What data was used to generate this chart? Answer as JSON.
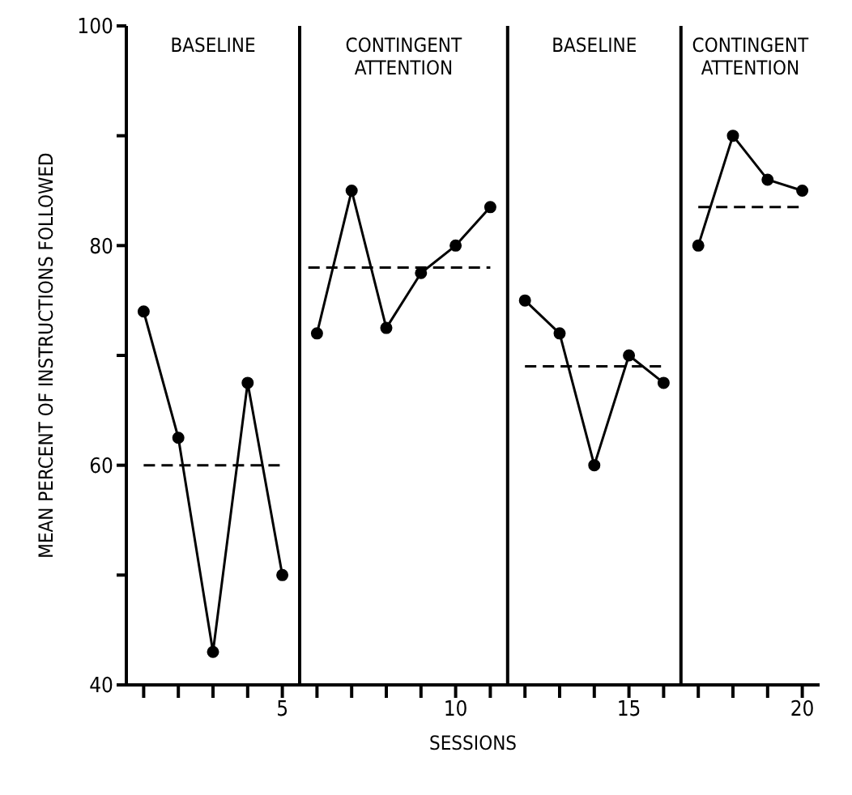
{
  "chart_data": {
    "type": "line",
    "xlabel": "SESSIONS",
    "ylabel": "MEAN PERCENT OF INSTRUCTIONS FOLLOWED",
    "xlim": [
      0.5,
      20.5
    ],
    "xticks": [
      {
        "value": 1,
        "label": null
      },
      {
        "value": 2,
        "label": null
      },
      {
        "value": 3,
        "label": null
      },
      {
        "value": 4,
        "label": null
      },
      5,
      {
        "value": 6,
        "label": null
      },
      {
        "value": 7,
        "label": null
      },
      {
        "value": 8,
        "label": null
      },
      {
        "value": 9,
        "label": null
      },
      10,
      {
        "value": 11,
        "label": null
      },
      {
        "value": 12,
        "label": null
      },
      {
        "value": 13,
        "label": null
      },
      {
        "value": 14,
        "label": null
      },
      15,
      {
        "value": 16,
        "label": null
      },
      {
        "value": 17,
        "label": null
      },
      {
        "value": 18,
        "label": null
      },
      {
        "value": 19,
        "label": null
      },
      20
    ],
    "ylim": [
      40,
      100
    ],
    "yticks": [
      40,
      {
        "value": 50,
        "label": null
      },
      60,
      {
        "value": 70,
        "label": null
      },
      80,
      {
        "value": 90,
        "label": null
      },
      100
    ],
    "grid": false,
    "series": [
      {
        "color": "#000000",
        "marker": "circle",
        "line_style": "solid",
        "x": [
          1,
          2,
          3,
          4,
          5
        ],
        "values": [
          74,
          62.5,
          43,
          67.5,
          50
        ]
      },
      {
        "color": "#000000",
        "marker": "circle",
        "line_style": "solid",
        "x": [
          6,
          7,
          8,
          9,
          10,
          11
        ],
        "values": [
          72,
          85,
          72.5,
          77.5,
          80,
          83.5
        ]
      },
      {
        "color": "#000000",
        "marker": "circle",
        "line_style": "solid",
        "x": [
          12,
          13,
          14,
          15,
          16
        ],
        "values": [
          75,
          72,
          60,
          70,
          67.5
        ]
      },
      {
        "color": "#000000",
        "marker": "circle",
        "line_style": "solid",
        "x": [
          17,
          18,
          19,
          20
        ],
        "values": [
          80,
          90,
          86,
          85
        ]
      },
      {
        "color": "#000000",
        "marker": "none",
        "line_style": "dashed",
        "x": [
          1,
          5
        ],
        "values": [
          60,
          60
        ]
      },
      {
        "color": "#000000",
        "marker": "none",
        "line_style": "dashed",
        "x": [
          5.75,
          11
        ],
        "values": [
          78,
          78
        ]
      },
      {
        "color": "#000000",
        "marker": "none",
        "line_style": "dashed",
        "x": [
          12,
          16
        ],
        "values": [
          69,
          69
        ]
      },
      {
        "color": "#000000",
        "marker": "none",
        "line_style": "dashed",
        "x": [
          17,
          20
        ],
        "values": [
          83.5,
          83.5
        ]
      }
    ],
    "ref_lines": [
      {
        "axis": "x",
        "value": 5.5,
        "color": "#000000",
        "line_style": "solid"
      },
      {
        "axis": "x",
        "value": 11.5,
        "color": "#000000",
        "line_style": "solid"
      },
      {
        "axis": "x",
        "value": 16.5,
        "color": "#000000",
        "line_style": "solid"
      }
    ],
    "annotations": [
      "BASELINE",
      "CONTINGENT ATTENTION",
      "BASELINE",
      "CONTINGENT ATTENTION"
    ]
  }
}
